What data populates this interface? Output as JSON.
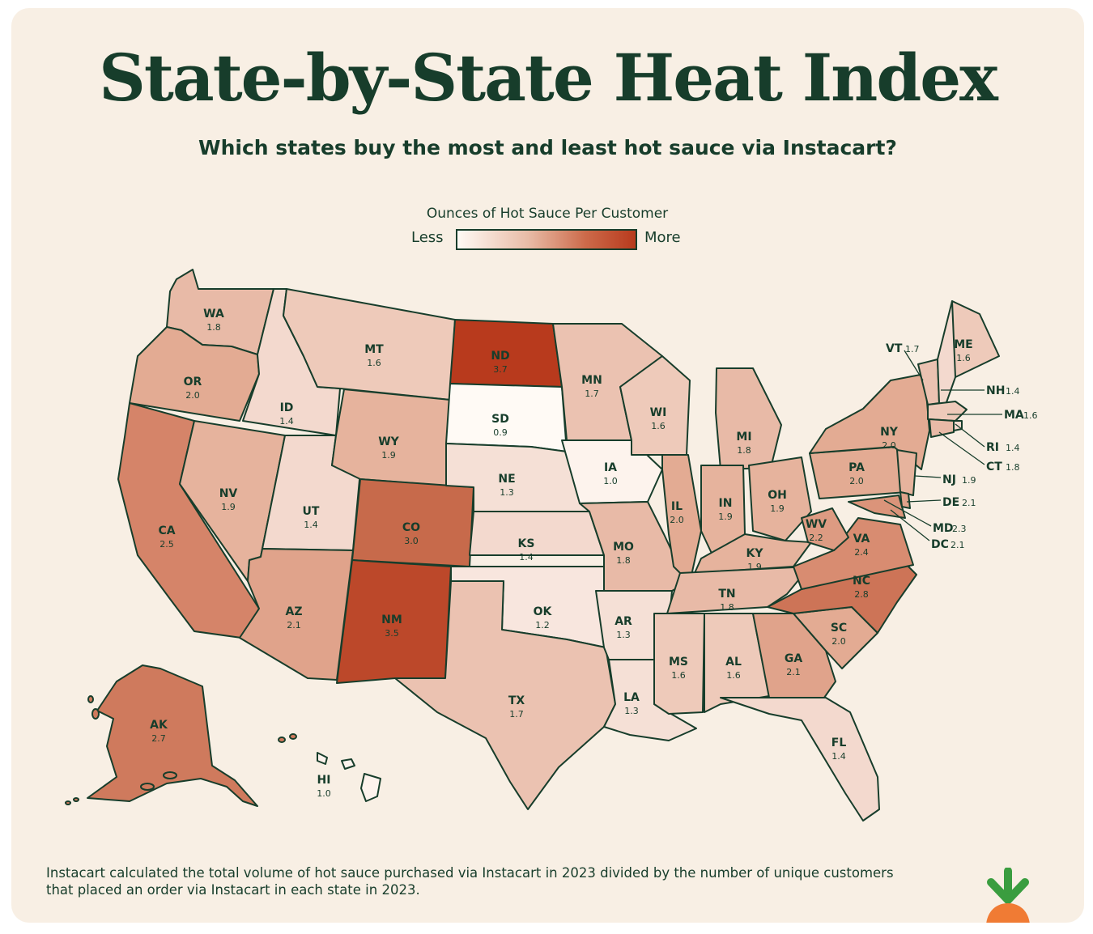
{
  "title": "State-by-State Heat Index",
  "subtitle": "Which states buy the most and least hot sauce via Instacart?",
  "legend": {
    "title": "Ounces of Hot Sauce Per Customer",
    "low_label": "Less",
    "high_label": "More"
  },
  "footnote": "Instacart calculated the total volume of hot sauce purchased via Instacart in 2023 divided by the number of unique customers that placed an order via Instacart in each state in 2023.",
  "colors": {
    "background": "#f8efe4",
    "border": "#173d2b",
    "low": "#fffaf5",
    "high": "#b83a1d",
    "logo_green": "#3a9d3f",
    "logo_orange": "#f07b34"
  },
  "map": {
    "unit": "ounces of hot sauce per customer",
    "states": [
      {
        "abbr": "WA",
        "value": "1.8"
      },
      {
        "abbr": "OR",
        "value": "2.0"
      },
      {
        "abbr": "CA",
        "value": "2.5"
      },
      {
        "abbr": "ID",
        "value": "1.4"
      },
      {
        "abbr": "NV",
        "value": "1.9"
      },
      {
        "abbr": "UT",
        "value": "1.4"
      },
      {
        "abbr": "AZ",
        "value": "2.1"
      },
      {
        "abbr": "MT",
        "value": "1.6"
      },
      {
        "abbr": "WY",
        "value": "1.9"
      },
      {
        "abbr": "CO",
        "value": "3.0"
      },
      {
        "abbr": "NM",
        "value": "3.5"
      },
      {
        "abbr": "ND",
        "value": "3.7"
      },
      {
        "abbr": "SD",
        "value": "0.9"
      },
      {
        "abbr": "NE",
        "value": "1.3"
      },
      {
        "abbr": "KS",
        "value": "1.4"
      },
      {
        "abbr": "OK",
        "value": "1.2"
      },
      {
        "abbr": "TX",
        "value": "1.7"
      },
      {
        "abbr": "MN",
        "value": "1.7"
      },
      {
        "abbr": "IA",
        "value": "1.0"
      },
      {
        "abbr": "MO",
        "value": "1.8"
      },
      {
        "abbr": "AR",
        "value": "1.3"
      },
      {
        "abbr": "LA",
        "value": "1.3"
      },
      {
        "abbr": "WI",
        "value": "1.6"
      },
      {
        "abbr": "IL",
        "value": "2.0"
      },
      {
        "abbr": "MI",
        "value": "1.8"
      },
      {
        "abbr": "IN",
        "value": "1.9"
      },
      {
        "abbr": "OH",
        "value": "1.9"
      },
      {
        "abbr": "KY",
        "value": "1.9"
      },
      {
        "abbr": "TN",
        "value": "1.8"
      },
      {
        "abbr": "MS",
        "value": "1.6"
      },
      {
        "abbr": "AL",
        "value": "1.6"
      },
      {
        "abbr": "GA",
        "value": "2.1"
      },
      {
        "abbr": "FL",
        "value": "1.4"
      },
      {
        "abbr": "SC",
        "value": "2.0"
      },
      {
        "abbr": "NC",
        "value": "2.8"
      },
      {
        "abbr": "VA",
        "value": "2.4"
      },
      {
        "abbr": "WV",
        "value": "2.2"
      },
      {
        "abbr": "PA",
        "value": "2.0"
      },
      {
        "abbr": "NY",
        "value": "2.0"
      },
      {
        "abbr": "ME",
        "value": "1.6"
      },
      {
        "abbr": "VT",
        "value": "1.7"
      },
      {
        "abbr": "NH",
        "value": "1.4"
      },
      {
        "abbr": "MA",
        "value": "1.6"
      },
      {
        "abbr": "RI",
        "value": "1.4"
      },
      {
        "abbr": "CT",
        "value": "1.8"
      },
      {
        "abbr": "NJ",
        "value": "1.9"
      },
      {
        "abbr": "DE",
        "value": "2.1"
      },
      {
        "abbr": "MD",
        "value": "2.3"
      },
      {
        "abbr": "DC",
        "value": "2.1"
      },
      {
        "abbr": "AK",
        "value": "2.7"
      },
      {
        "abbr": "HI",
        "value": "1.0"
      }
    ]
  }
}
